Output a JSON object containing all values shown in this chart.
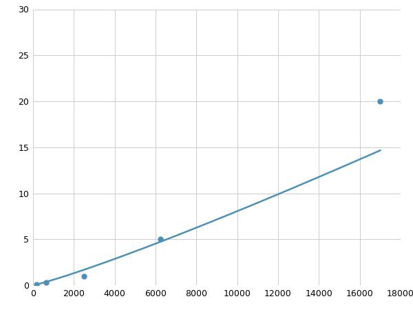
{
  "x_points": [
    156,
    625,
    2500,
    6250,
    17000
  ],
  "y_points": [
    0.1,
    0.3,
    1.0,
    5.0,
    20.0
  ],
  "line_color": "#4a90b8",
  "marker_color": "#4a90b8",
  "marker_size": 5,
  "linewidth": 1.8,
  "xlim": [
    0,
    18000
  ],
  "ylim": [
    0,
    30
  ],
  "xticks": [
    0,
    2000,
    4000,
    6000,
    8000,
    10000,
    12000,
    14000,
    16000,
    18000
  ],
  "yticks": [
    0,
    5,
    10,
    15,
    20,
    25,
    30
  ],
  "grid_color": "#cccccc",
  "background_color": "#ffffff",
  "tick_fontsize": 9
}
